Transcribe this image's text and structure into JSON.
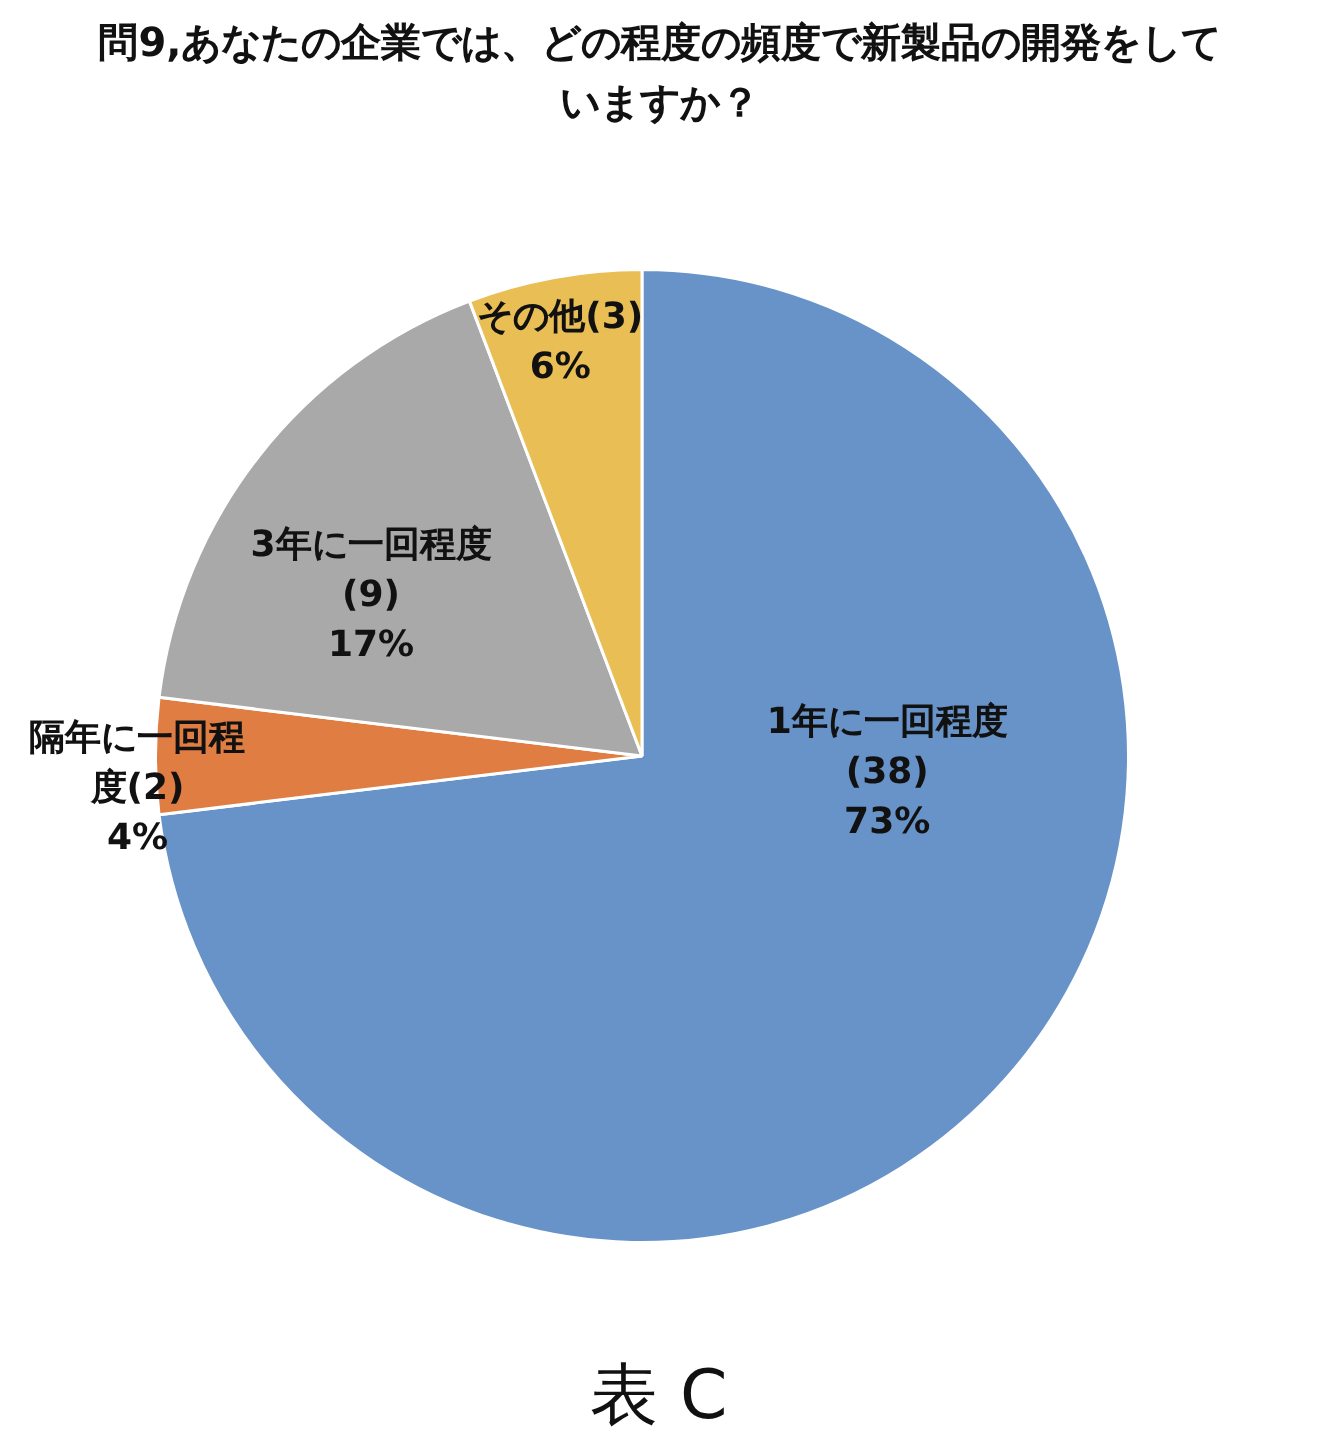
{
  "chart_data": {
    "type": "pie",
    "title": "問9,あなたの企業では、どの程度の頻度で新製品の開発をしていますか？",
    "categories": [
      "1年に一回程度",
      "隔年に一回程度",
      "3年に一回程度",
      "その他"
    ],
    "values": [
      38,
      2,
      9,
      3
    ],
    "colors": [
      "#6793c8",
      "#df7d42",
      "#a9a9a9",
      "#e9bf55"
    ],
    "value_labels": [
      "(38)\n73%",
      "(2)\n4%",
      "(9)\n17%",
      "(3)\n6%"
    ],
    "annotations": [
      "表 C"
    ]
  }
}
